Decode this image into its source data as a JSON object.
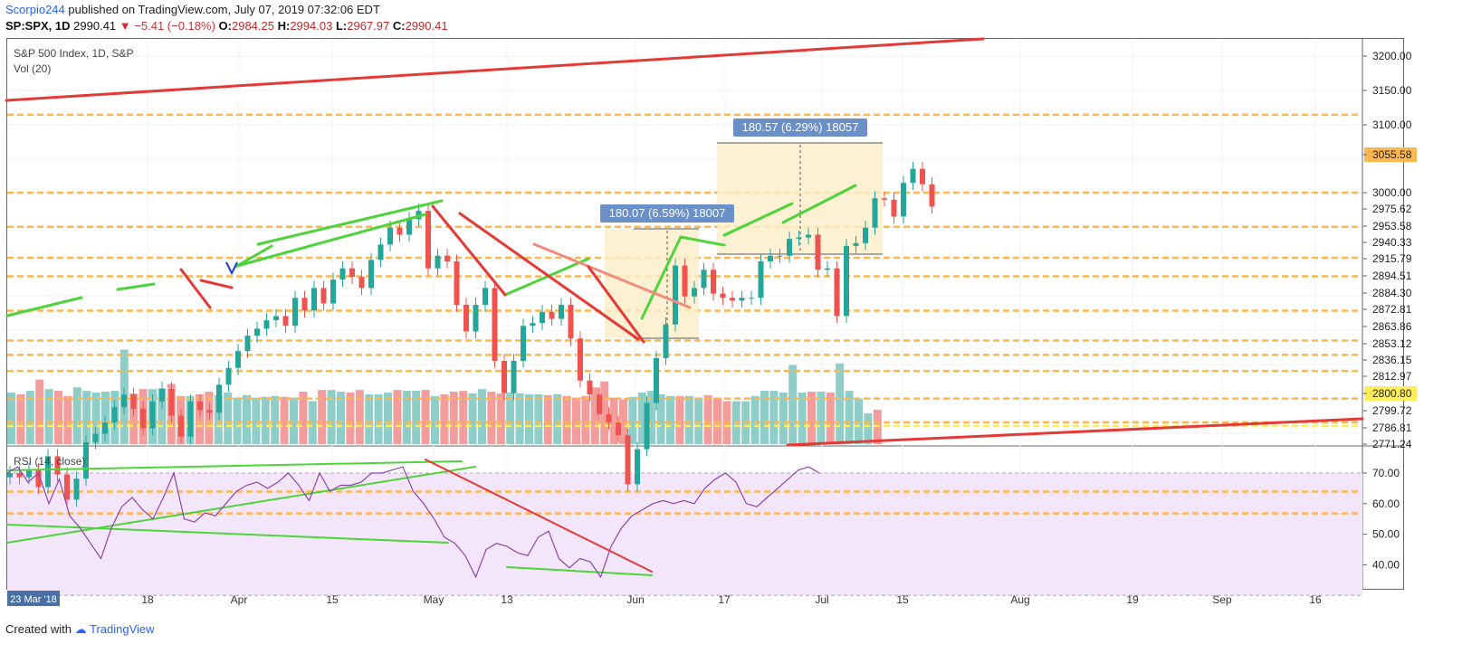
{
  "header": {
    "author": "Scorpio244",
    "published": "published on TradingView.com, July 07, 2019 07:32:06 EDT",
    "symbol": "SP:SPX, 1D",
    "last": "2990.41",
    "change_arrow": "▼",
    "change": "−5.41 (−0.18%)",
    "o_label": "O:",
    "o": "2984.25",
    "h_label": "H:",
    "h": "2994.03",
    "l_label": "L:",
    "l": "2967.97",
    "c_label": "C:",
    "c": "2990.41"
  },
  "legend": {
    "title": "S&P 500 Index, 1D, S&P",
    "vol": "Vol (20)",
    "rsi": "RSI (14, close)"
  },
  "measure_boxes": [
    {
      "label": "180.07 (6.59%) 18007"
    },
    {
      "label": "180.57 (6.29%) 18057"
    }
  ],
  "footer": {
    "created": "Created with",
    "brand": "TradingView"
  },
  "colors": {
    "up": "#26a69a",
    "down": "#ef5350",
    "vol_up": "#8fcdc8",
    "vol_down": "#f29c9c",
    "level": "#ffb74d",
    "trend_red": "#e53935",
    "trend_green": "#4cd43a",
    "rsi_line": "#8e44ad",
    "rsi_band": "#f3e5fa",
    "measure": "#6b8fc7"
  },
  "chart_data": {
    "type": "candlestick",
    "title": "S&P 500 Index, 1D, S&P",
    "price_axis": {
      "labels": [
        "3200.00",
        "3150.00",
        "3100.00",
        "3055.58",
        "3000.00",
        "2975.62",
        "2953.58",
        "2940.33",
        "2915.79",
        "2894.51",
        "2884.30",
        "2872.81",
        "2863.86",
        "2853.12",
        "2836.15",
        "2812.97",
        "2800.80",
        "2799.72",
        "2786.81",
        "2771.24"
      ],
      "highlighted": [
        "3055.58",
        "2800.80"
      ]
    },
    "time_axis": {
      "start_label": "23 Mar '18",
      "labels": [
        "18",
        "Apr",
        "15",
        "May",
        "13",
        "Jun",
        "17",
        "Jul",
        "15",
        "Aug",
        "19",
        "Sep",
        "16"
      ]
    },
    "rsi": {
      "labels": [
        "70.00",
        "60.00",
        "50.00",
        "40.00"
      ],
      "band": [
        30,
        70
      ]
    },
    "horizontal_levels": [
      3055.58,
      3000.0,
      2975.62,
      2953.58,
      2940.33,
      2915.79,
      2894.51,
      2884.3,
      2872.81,
      2853.12,
      2836.15,
      2786.81,
      2771.24
    ]
  }
}
